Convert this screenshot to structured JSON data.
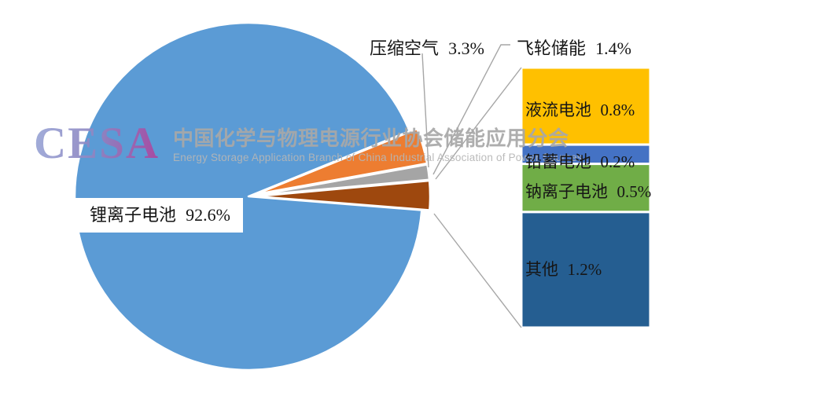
{
  "watermark": {
    "logo_text": "CESA",
    "org_name_cn": "中国化学与物理电源行业协会储能应用分会",
    "org_name_en": "Energy Storage Application Branch of China Industrial Association of Power Sources"
  },
  "chart_data": {
    "type": "pie",
    "variant": "bar-of-pie",
    "unit": "%",
    "legend_position": "none",
    "pie_series": [
      {
        "name": "锂离子电池",
        "value": 92.6,
        "pct_label": "92.6%",
        "color": "#5B9BD5"
      },
      {
        "name": "压缩空气",
        "value": 3.3,
        "pct_label": "3.3%",
        "color": "#ED7D31"
      },
      {
        "name": "飞轮储能",
        "value": 1.4,
        "pct_label": "1.4%",
        "color": "#A5A5A5"
      },
      {
        "name": "",
        "value": 2.7,
        "pct_label": "",
        "color": "#9E480E",
        "group": true
      }
    ],
    "bar_series": [
      {
        "name": "液流电池",
        "value": 0.8,
        "pct_label": "0.8%",
        "color": "#FFC000"
      },
      {
        "name": "铅蓄电池",
        "value": 0.2,
        "pct_label": "0.2%",
        "color": "#4472C4"
      },
      {
        "name": "钠离子电池",
        "value": 0.5,
        "pct_label": "0.5%",
        "color": "#70AD47"
      },
      {
        "name": "其他",
        "value": 1.2,
        "pct_label": "1.2%",
        "color": "#255E91"
      }
    ]
  }
}
